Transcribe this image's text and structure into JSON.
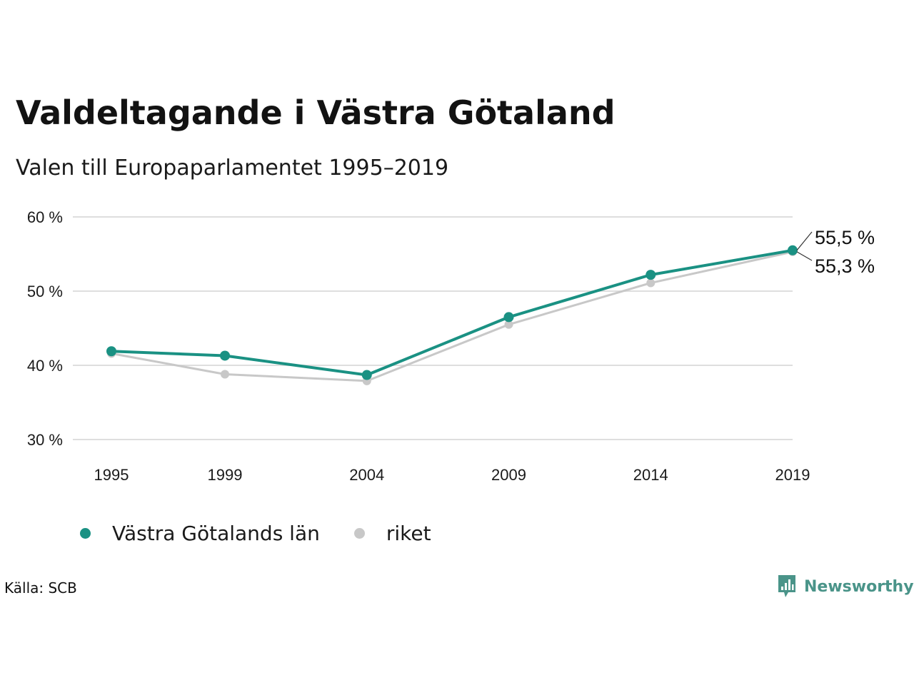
{
  "header": {
    "title": "Valdeltagande i Västra Götaland",
    "subtitle": "Valen till Europaparlamentet 1995–2019"
  },
  "colors": {
    "primary": "#1a9183",
    "secondary": "#c8c8c8",
    "grid": "#dedede",
    "brand": "#4a9489"
  },
  "chart_data": {
    "type": "line",
    "title": "Valdeltagande i Västra Götaland",
    "subtitle": "Valen till Europaparlamentet 1995–2019",
    "xlabel": "",
    "ylabel": "",
    "x": [
      "1995",
      "1999",
      "2004",
      "2009",
      "2014",
      "2019"
    ],
    "x_scale": "year",
    "ylim": [
      30,
      60
    ],
    "y_ticks": [
      30,
      40,
      50,
      60
    ],
    "y_tick_labels": [
      "30 %",
      "40 %",
      "50 %",
      "60 %"
    ],
    "grid": true,
    "legend_position": "bottom-left",
    "series": [
      {
        "name": "Västra Götalands län",
        "color": "#1a9183",
        "values": [
          41.9,
          41.3,
          38.7,
          46.5,
          52.2,
          55.5
        ],
        "end_label": "55,5 %"
      },
      {
        "name": "riket",
        "color": "#c8c8c8",
        "values": [
          41.6,
          38.8,
          37.9,
          45.5,
          51.1,
          55.3
        ],
        "end_label": "55,3 %"
      }
    ]
  },
  "legend": {
    "items": [
      {
        "label": "Västra Götalands län",
        "color": "#1a9183"
      },
      {
        "label": "riket",
        "color": "#c8c8c8"
      }
    ]
  },
  "footer": {
    "source": "Källa: SCB",
    "brand": "Newsworthy",
    "brand_icon": "newsworthy-logo-icon"
  }
}
